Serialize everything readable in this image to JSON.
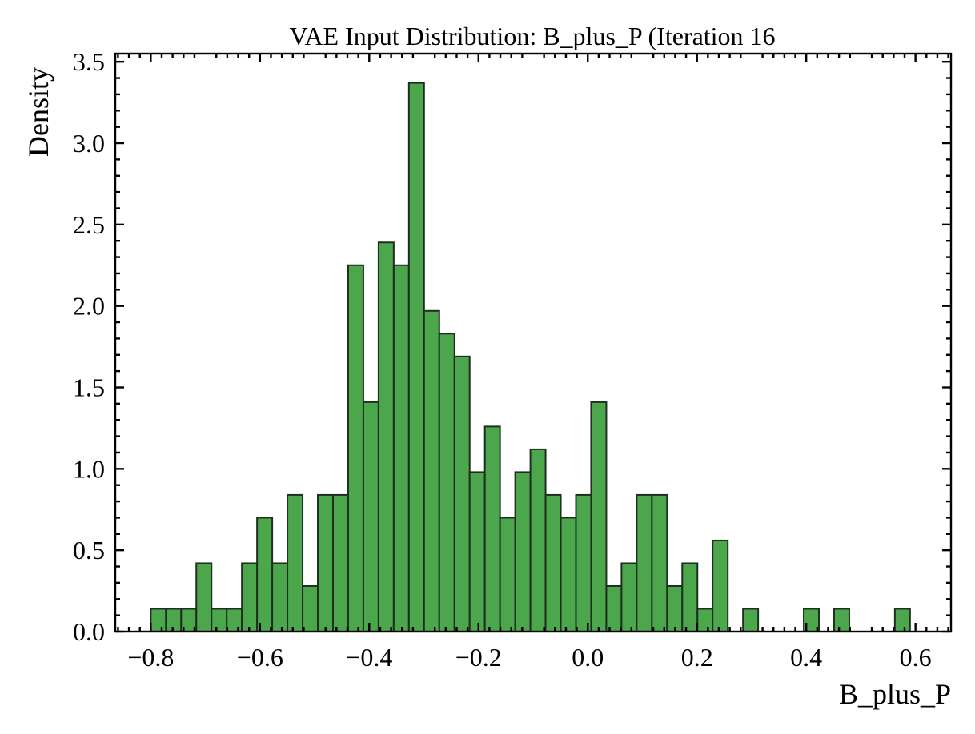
{
  "chart_data": {
    "type": "bar",
    "title": "VAE Input Distribution: B_plus_P (Iteration 16",
    "xlabel": "B_plus_P",
    "ylabel": "Density",
    "xlim": [
      -0.865,
      0.665
    ],
    "ylim": [
      0,
      3.55
    ],
    "xticks": [
      -0.8,
      -0.6,
      -0.4,
      -0.2,
      0.0,
      0.2,
      0.4,
      0.6
    ],
    "xtick_labels": [
      "−0.8",
      "−0.6",
      "−0.4",
      "−0.2",
      "0.0",
      "0.2",
      "0.4",
      "0.6"
    ],
    "yticks": [
      0.0,
      0.5,
      1.0,
      1.5,
      2.0,
      2.5,
      3.0,
      3.5
    ],
    "ytick_labels": [
      "0.0",
      "0.5",
      "1.0",
      "1.5",
      "2.0",
      "2.5",
      "3.0",
      "3.5"
    ],
    "grid": false,
    "bar_color": "#4ca64c",
    "edge_color": "#1f2f1f",
    "bin_start": -0.8,
    "bin_width": 0.0278,
    "values": [
      0.14,
      0.14,
      0.14,
      0.42,
      0.14,
      0.14,
      0.42,
      0.7,
      0.42,
      0.84,
      0.28,
      0.84,
      0.84,
      2.25,
      1.41,
      2.39,
      2.25,
      3.37,
      1.97,
      1.83,
      1.69,
      0.98,
      1.26,
      0.7,
      0.98,
      1.12,
      0.84,
      0.7,
      0.84,
      1.41,
      0.28,
      0.42,
      0.84,
      0.84,
      0.28,
      0.42,
      0.14,
      0.56,
      0,
      0.14,
      0,
      0,
      0,
      0.14,
      0,
      0.14,
      0,
      0,
      0,
      0.14
    ]
  }
}
